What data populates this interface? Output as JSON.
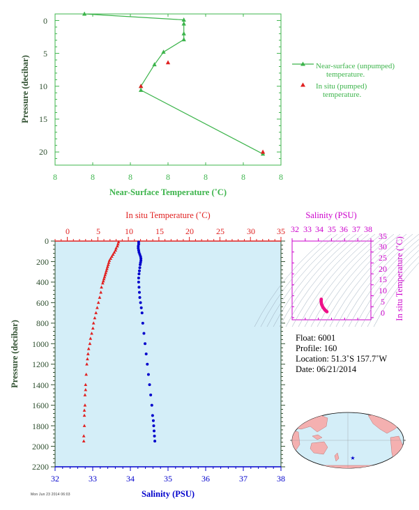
{
  "colors": {
    "green": "#3cb44b",
    "red": "#e02020",
    "blue": "#0000cc",
    "magenta": "#cc00cc",
    "panel_bg": "#d4eef8",
    "axis_text_dark": "#2f4f2f"
  },
  "top_chart": {
    "xlabel": "Near-Surface Temperature (˚C)",
    "ylabel": "Pressure (decibar)",
    "x_tick_labels": [
      "8",
      "8",
      "8",
      "8",
      "8",
      "8",
      "8"
    ],
    "y_tick_labels": [
      "0",
      "5",
      "10",
      "15",
      "20"
    ],
    "legend": {
      "unpumped": "Near-surface (unpumped) temperature.",
      "pumped": "In situ (pumped) temperature."
    }
  },
  "bottom_chart": {
    "temp_axis_label": "In situ Temperature (˚C)",
    "salinity_axis_label": "Salinity (PSU)",
    "ylabel": "Pressure (decibar)",
    "temp_tick_labels": [
      "0",
      "5",
      "10",
      "15",
      "20",
      "25",
      "30",
      "35"
    ],
    "salinity_tick_labels": [
      "32",
      "33",
      "34",
      "35",
      "36",
      "37",
      "38"
    ],
    "pressure_tick_labels": [
      "0",
      "200",
      "400",
      "600",
      "800",
      "1000",
      "1200",
      "1400",
      "1600",
      "1800",
      "2000",
      "2200"
    ]
  },
  "ts_chart": {
    "xlabel": "Salinity (PSU)",
    "ylabel": "In situ Temperature (˚C)",
    "x_tick_labels": [
      "32",
      "33",
      "34",
      "35",
      "36",
      "37",
      "38"
    ],
    "y_tick_labels": [
      "0",
      "5",
      "10",
      "15",
      "20",
      "25",
      "30",
      "35"
    ]
  },
  "info": {
    "float": "Float:  6001",
    "profile": "Profile:  160",
    "location": "Location:  51.3˚S  157.7˚W",
    "date": "Date:  06/21/2014"
  },
  "stamp": "Mon Jun 23 2014 06:03",
  "chart_data": [
    {
      "type": "line",
      "name": "near-surface temperature",
      "xlabel": "Near-Surface Temperature (˚C)",
      "ylabel": "Pressure (decibar)",
      "x_tick_labels": [
        "8",
        "8",
        "8",
        "8",
        "8",
        "8",
        "8"
      ],
      "ylim": [
        22,
        -1
      ],
      "y_ticks": [
        0,
        5,
        10,
        15,
        20
      ],
      "series": [
        {
          "name": "Near-surface (unpumped) temperature.",
          "marker": "triangle",
          "color": "#3cb44b",
          "x_frac": [
            0.13,
            0.57,
            0.57,
            0.57,
            0.57,
            0.48,
            0.44,
            0.38,
            0.38,
            0.92
          ],
          "y": [
            -1.0,
            -0.1,
            0.5,
            2.0,
            2.9,
            4.8,
            6.7,
            10.0,
            10.6,
            20.3
          ]
        },
        {
          "name": "In situ (pumped) temperature.",
          "marker": "triangle",
          "color": "#e02020",
          "x_frac": [
            0.5,
            0.38,
            0.92
          ],
          "y": [
            6.4,
            10.0,
            20.0
          ]
        }
      ]
    },
    {
      "type": "scatter",
      "name": "temperature and salinity profiles",
      "ylabel": "Pressure (decibar)",
      "ylim": [
        2200,
        0
      ],
      "series": [
        {
          "name": "In situ Temperature (˚C)",
          "marker": "triangle",
          "color": "#e02020",
          "xlim": [
            -2,
            35
          ],
          "x": [
            8.4,
            8.3,
            8.2,
            8.0,
            7.9,
            7.7,
            7.5,
            7.3,
            7.1,
            6.9,
            6.8,
            6.7,
            6.6,
            6.5,
            6.4,
            6.3,
            6.2,
            6.1,
            6.0,
            5.9,
            5.8,
            5.6,
            5.5,
            5.3,
            5.1,
            4.9,
            4.7,
            4.5,
            4.3,
            4.2,
            4.0,
            3.8,
            3.7,
            3.5,
            3.4,
            3.3,
            3.2,
            3.1,
            3.0,
            3.0,
            2.9,
            2.9,
            2.8,
            2.8,
            2.8,
            2.7,
            2.7
          ],
          "y": [
            10,
            30,
            50,
            70,
            90,
            110,
            130,
            150,
            170,
            190,
            210,
            230,
            250,
            270,
            290,
            310,
            330,
            350,
            370,
            390,
            410,
            450,
            500,
            550,
            600,
            650,
            700,
            750,
            800,
            850,
            900,
            950,
            1000,
            1050,
            1100,
            1150,
            1200,
            1300,
            1400,
            1450,
            1500,
            1600,
            1650,
            1700,
            1800,
            1900,
            1950
          ]
        },
        {
          "name": "Salinity (PSU)",
          "marker": "circle",
          "color": "#0000cc",
          "xlim": [
            32,
            38
          ],
          "x": [
            34.22,
            34.22,
            34.21,
            34.21,
            34.22,
            34.23,
            34.25,
            34.27,
            34.28,
            34.28,
            34.27,
            34.26,
            34.25,
            34.24,
            34.23,
            34.22,
            34.22,
            34.23,
            34.24,
            34.25,
            34.27,
            34.29,
            34.31,
            34.33,
            34.36,
            34.39,
            34.42,
            34.45,
            34.48,
            34.51,
            34.54,
            34.57,
            34.59,
            34.61,
            34.62,
            34.63,
            34.64,
            34.65
          ],
          "y": [
            10,
            30,
            50,
            70,
            90,
            110,
            130,
            150,
            170,
            190,
            210,
            230,
            260,
            290,
            320,
            360,
            400,
            450,
            500,
            550,
            600,
            650,
            700,
            800,
            900,
            1000,
            1100,
            1200,
            1300,
            1400,
            1500,
            1600,
            1700,
            1750,
            1800,
            1850,
            1900,
            1950
          ]
        }
      ]
    },
    {
      "type": "scatter",
      "name": "T-S diagram",
      "xlabel": "Salinity (PSU)",
      "ylabel": "In situ Temperature (˚C)",
      "xlim": [
        32,
        38
      ],
      "ylim": [
        -1,
        35
      ],
      "series": [
        {
          "marker": "circle",
          "color": "#ee1188",
          "x": [
            34.22,
            34.21,
            34.21,
            34.22,
            34.23,
            34.25,
            34.28,
            34.31,
            34.35,
            34.4,
            34.45,
            34.5,
            34.55,
            34.6,
            34.65
          ],
          "y": [
            8.4,
            8.0,
            7.5,
            7.0,
            6.5,
            6.0,
            5.6,
            5.2,
            4.7,
            4.3,
            3.9,
            3.5,
            3.2,
            3.0,
            2.7
          ]
        }
      ]
    }
  ]
}
